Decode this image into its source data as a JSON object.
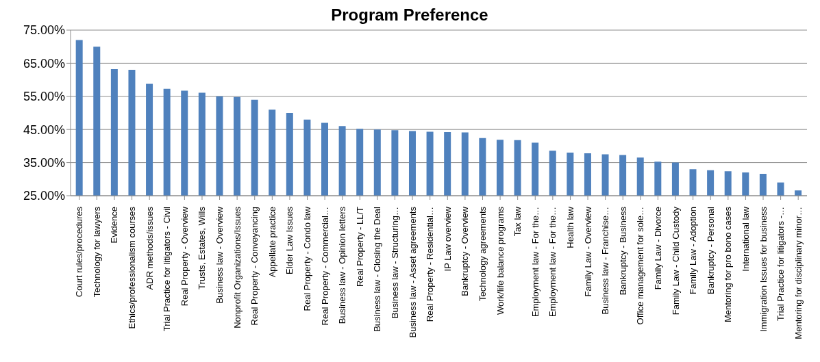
{
  "chart_data": {
    "type": "bar",
    "title": "Program Preference",
    "categories": [
      "Court rules/procedures",
      "Technology for lawyers",
      "Evidence",
      "Ethics/professionalism courses",
      "ADR methods/issues",
      "Trial Practice for litigators - Civil",
      "Real Property - Overview",
      "Trusts, Estates, Wills",
      "Business law - Overview",
      "Nonprofit Organizations/Issues",
      "Real Property - Conveyancing",
      "Appellate practice",
      "Elder Law Issues",
      "Real Property - Condo law",
      "Real Property - Commercial…",
      "Business law - Opinion letters",
      "Real Property - LL/T",
      "Business law - Closing the Deal",
      "Business law - Structuring…",
      "Business law - Asset agreements",
      "Real Property - Residential…",
      "IP Law overview",
      "Bankruptcy - Overview",
      "Technology agreements",
      "Work/life balance programs",
      "Tax law",
      "Employment law - For the…",
      "Employment law - For the…",
      "Health law",
      "Family Law - Overview",
      "Business law - Franchise…",
      "Bankruptcy - Business",
      "Office management for sole…",
      "Family Law - Divorce",
      "Family Law - Child Custody",
      "Family Law - Adoption",
      "Bankruptcy - Personal",
      "Mentoring for pro bono cases",
      "International law",
      "Immigration Issues for business",
      "Trial Practice for litigators -…",
      "Mentoring for disciplinary minor…"
    ],
    "values": [
      72,
      70,
      63.2,
      63,
      58.8,
      57.3,
      56.7,
      56.1,
      55,
      54.8,
      54,
      51,
      50,
      48,
      47,
      46,
      45.2,
      45,
      44.8,
      44.5,
      44.3,
      44.2,
      44.1,
      42.4,
      41.9,
      41.8,
      41,
      38.6,
      38,
      37.8,
      37.5,
      37.3,
      36.5,
      35.3,
      35,
      33,
      32.7,
      32.4,
      32,
      31.6,
      29,
      26.6
    ],
    "color": "#4f81bd",
    "ylim": [
      25,
      75
    ],
    "yticks": [
      {
        "value": 25,
        "label": "25.00%"
      },
      {
        "value": 35,
        "label": "35.00%"
      },
      {
        "value": 45,
        "label": "45.00%"
      },
      {
        "value": 55,
        "label": "55.00%"
      },
      {
        "value": 65,
        "label": "65.00%"
      },
      {
        "value": 75,
        "label": "75.00%"
      }
    ],
    "grid": "y"
  }
}
